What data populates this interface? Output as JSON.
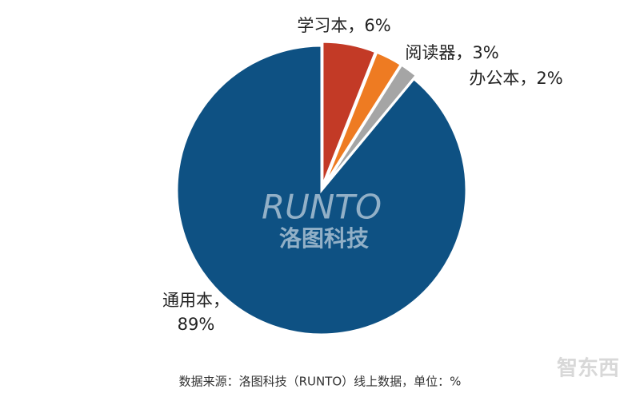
{
  "chart_data": {
    "type": "pie",
    "categories": [
      "学习本，",
      "阅读器，",
      "办公本，",
      "通用本，"
    ],
    "values": [
      6,
      3,
      2,
      89
    ],
    "value_labels": [
      "6%",
      "3%",
      "2%",
      "89%"
    ],
    "colors": [
      "#c33a26",
      "#ee7b22",
      "#a5a5a5",
      "#0e5183"
    ],
    "source": "数据来源：洛图科技（RUNTO）线上数据，单位：%",
    "watermark": [
      "RUNTO",
      "洛图科技"
    ],
    "logo": "智东西"
  }
}
